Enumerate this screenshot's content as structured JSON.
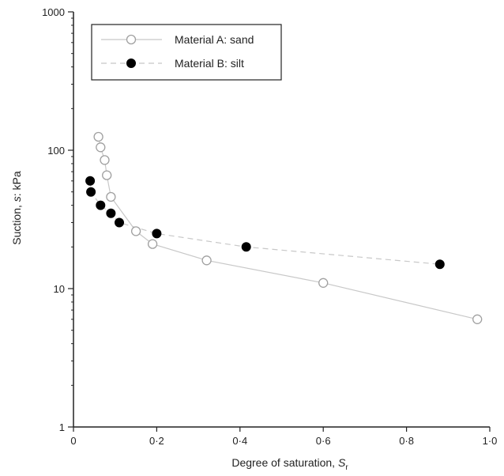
{
  "chart_data": {
    "type": "scatter",
    "title": "",
    "xlabel": {
      "main": "Degree of saturation, ",
      "symbol": "S",
      "subscript": "r"
    },
    "ylabel": {
      "prefix": "Suction, ",
      "symbol": "s",
      "suffix": ": kPa"
    },
    "x_scale": "linear",
    "y_scale": "log",
    "xlim": [
      0,
      1.0
    ],
    "ylim": [
      1,
      1000
    ],
    "x_ticks": [
      0,
      0.2,
      0.4,
      0.6,
      0.8,
      1.0
    ],
    "x_tick_labels": [
      "0",
      "0·2",
      "0·4",
      "0·6",
      "0·8",
      "1·0"
    ],
    "y_ticks": [
      1,
      10,
      100,
      1000
    ],
    "y_tick_labels": [
      "1",
      "10",
      "100",
      "1000"
    ],
    "grid": false,
    "legend_position": "top-left",
    "series": [
      {
        "name": "Material A: sand",
        "marker": "open-circle",
        "line": "solid",
        "line_color": "#c8c8c8",
        "marker_color": "#a0a0a0",
        "points": [
          [
            0.06,
            125
          ],
          [
            0.065,
            105
          ],
          [
            0.075,
            85
          ],
          [
            0.08,
            66
          ],
          [
            0.09,
            46
          ],
          [
            0.15,
            26
          ],
          [
            0.19,
            21
          ],
          [
            0.32,
            16
          ],
          [
            0.6,
            11
          ],
          [
            0.97,
            6
          ]
        ]
      },
      {
        "name": "Material B: silt",
        "marker": "filled-circle",
        "line": "dashed",
        "line_color": "#c8c8c8",
        "marker_color": "#000000",
        "points": [
          [
            0.04,
            60
          ],
          [
            0.042,
            50
          ],
          [
            0.065,
            40
          ],
          [
            0.09,
            35
          ],
          [
            0.11,
            30
          ],
          [
            0.2,
            25
          ],
          [
            0.415,
            20
          ],
          [
            0.88,
            15
          ]
        ]
      }
    ]
  }
}
